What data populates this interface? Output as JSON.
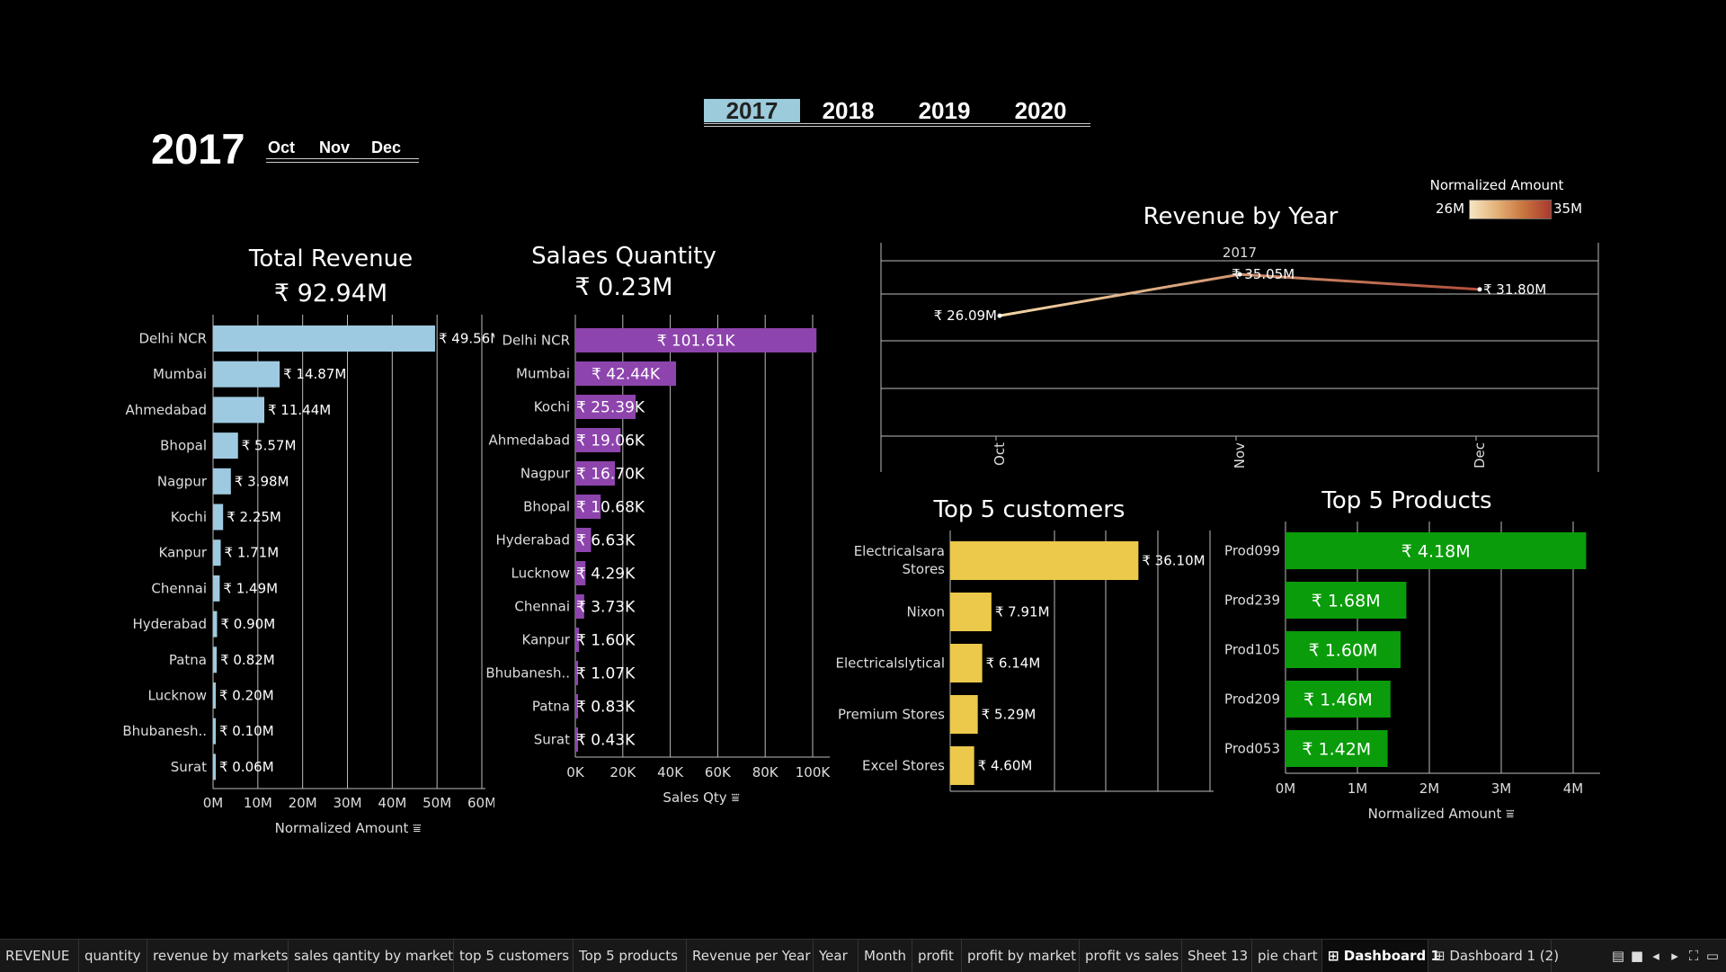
{
  "filters": {
    "years": [
      "2017",
      "2018",
      "2019",
      "2020"
    ],
    "selected_year": "2017",
    "months": [
      "Oct",
      "Nov",
      "Dec"
    ]
  },
  "total_revenue": {
    "title": "Total Revenue",
    "value": "₹ 92.94M"
  },
  "sales_quantity": {
    "title": "Salaes Quantity",
    "value": "₹ 0.23M"
  },
  "revenue_by_year": {
    "title": "Revenue by Year",
    "legend_title": "Normalized Amount",
    "legend_min": "26M",
    "legend_max": "35M",
    "header": "2017"
  },
  "top_customers": {
    "title": "Top 5 customers"
  },
  "top_products": {
    "title": "Top 5 Products"
  },
  "colors": {
    "revenue_bar": "#9ecae1",
    "quantity_bar": "#8e44ad",
    "customer_bar": "#ecc94b",
    "product_bar": "#0a9c0a",
    "line_start": "#f3d8a6",
    "line_end": "#b04e3a"
  },
  "chart_data": [
    {
      "type": "bar",
      "orientation": "horizontal",
      "categories": [
        "Delhi NCR",
        "Mumbai",
        "Ahmedabad",
        "Bhopal",
        "Nagpur",
        "Kochi",
        "Kanpur",
        "Chennai",
        "Hyderabad",
        "Patna",
        "Lucknow",
        "Bhubanesh..",
        "Surat"
      ],
      "values": [
        49.56,
        14.87,
        11.44,
        5.57,
        3.98,
        2.25,
        1.71,
        1.49,
        0.9,
        0.82,
        0.2,
        0.1,
        0.06
      ],
      "labels": [
        "₹ 49.56M",
        "₹ 14.87M",
        "₹ 11.44M",
        "₹ 5.57M",
        "₹ 3.98M",
        "₹ 2.25M",
        "₹ 1.71M",
        "₹ 1.49M",
        "₹ 0.90M",
        "₹ 0.82M",
        "₹ 0.20M",
        "₹ 0.10M",
        "₹ 0.06M"
      ],
      "xticks": [
        "0M",
        "10M",
        "20M",
        "30M",
        "40M",
        "50M",
        "60M"
      ],
      "xlim": [
        0,
        60
      ],
      "xlabel": "Normalized Amount"
    },
    {
      "type": "bar",
      "orientation": "horizontal",
      "categories": [
        "Delhi NCR",
        "Mumbai",
        "Kochi",
        "Ahmedabad",
        "Nagpur",
        "Bhopal",
        "Hyderabad",
        "Lucknow",
        "Chennai",
        "Kanpur",
        "Bhubanesh..",
        "Patna",
        "Surat"
      ],
      "values": [
        101.61,
        42.44,
        25.39,
        19.06,
        16.7,
        10.68,
        6.63,
        4.29,
        3.73,
        1.6,
        1.07,
        0.83,
        0.43
      ],
      "labels": [
        "₹ 101.61K",
        "₹ 42.44K",
        "₹ 25.39K",
        "₹ 19.06K",
        "₹ 16.70K",
        "₹ 10.68K",
        "₹ 6.63K",
        "₹ 4.29K",
        "₹ 3.73K",
        "₹ 1.60K",
        "₹ 1.07K",
        "₹ 0.83K",
        "₹ 0.43K"
      ],
      "xticks": [
        "0K",
        "20K",
        "40K",
        "60K",
        "80K",
        "100K"
      ],
      "xlim": [
        0,
        100
      ],
      "xlabel": "Sales Qty"
    },
    {
      "type": "line",
      "x": [
        "Oct",
        "Nov",
        "Dec"
      ],
      "values": [
        26.09,
        35.05,
        31.8
      ],
      "labels": [
        "₹ 26.09M",
        "₹ 35.05M",
        "₹ 31.80M"
      ],
      "ylim": [
        0,
        38
      ]
    },
    {
      "type": "bar",
      "orientation": "horizontal",
      "categories": [
        "Electricalsara Stores",
        "Nixon",
        "Electricalslytical",
        "Premium Stores",
        "Excel Stores"
      ],
      "values": [
        36.1,
        7.91,
        6.14,
        5.29,
        4.6
      ],
      "labels": [
        "₹ 36.10M",
        "₹ 7.91M",
        "₹ 6.14M",
        "₹ 5.29M",
        "₹ 4.60M"
      ],
      "xlim": [
        0,
        50
      ]
    },
    {
      "type": "bar",
      "orientation": "horizontal",
      "categories": [
        "Prod099",
        "Prod239",
        "Prod105",
        "Prod209",
        "Prod053"
      ],
      "values": [
        4.18,
        1.68,
        1.6,
        1.46,
        1.42
      ],
      "labels": [
        "₹ 4.18M",
        "₹ 1.68M",
        "₹ 1.60M",
        "₹ 1.46M",
        "₹ 1.42M"
      ],
      "xticks": [
        "0M",
        "1M",
        "2M",
        "3M",
        "4M"
      ],
      "xlim": [
        0,
        4.4
      ],
      "xlabel": "Normalized Amount"
    }
  ],
  "sheet_tabs": [
    "REVENUE",
    "quantity",
    "revenue by markets",
    "sales qantity by market",
    "top 5 customers",
    "Top 5 products",
    "Revenue per Year",
    "Year",
    "Month",
    "profit",
    "profit by market",
    "profit vs sales",
    "Sheet 13",
    "pie chart",
    "Dashboard 1",
    "Dashboard 1 (2)"
  ],
  "active_tab": "Dashboard 1"
}
